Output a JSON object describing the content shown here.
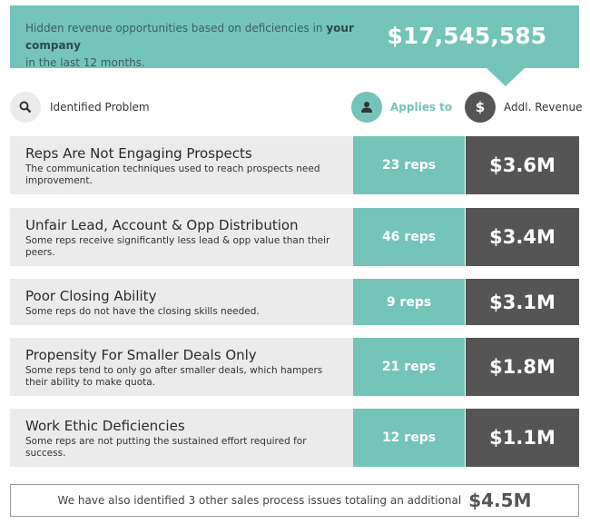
{
  "banner": {
    "text": "Hidden revenue opportunities based on deficiencies in",
    "text_bold": "your company",
    "text_end": "in the last 12 months.",
    "total": "$17,545,585"
  },
  "header": {
    "problem": "Identified Problem",
    "applies": "Applies to",
    "revenue": "Addl. Revenue"
  },
  "colors": {
    "teal": "#74c4ba",
    "dark": "#555555",
    "row_bg": "#ebebeb"
  },
  "rows": [
    {
      "title": "Reps Are Not Engaging Prospects",
      "desc": "The communication techniques used to reach prospects need improvement.",
      "reps": "23 reps",
      "revenue": "$3.6M"
    },
    {
      "title": "Unfair Lead, Account & Opp Distribution",
      "desc": "Some reps receive significantly less lead & opp value than their peers.",
      "reps": "46 reps",
      "revenue": "$3.4M"
    },
    {
      "title": "Poor Closing Ability",
      "desc": "Some reps do not have the closing skills needed.",
      "reps": "9 reps",
      "revenue": "$3.1M"
    },
    {
      "title": "Propensity For Smaller Deals Only",
      "desc": "Some reps tend to only go after smaller deals, which hampers their ability to make quota.",
      "reps": "21 reps",
      "revenue": "$1.8M"
    },
    {
      "title": "Work Ethic Deficiencies",
      "desc": "Some reps are not putting the sustained effort required for success.",
      "reps": "12 reps",
      "revenue": "$1.1M"
    }
  ],
  "footer": {
    "text": "We have also identified 3 other sales process issues totaling an additional",
    "value": "$4.5M"
  }
}
